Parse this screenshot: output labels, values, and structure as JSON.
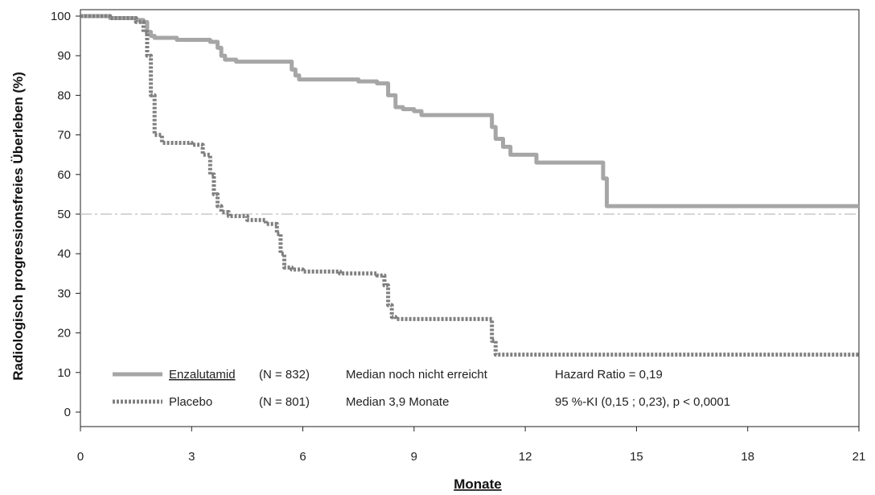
{
  "chart_data": {
    "type": "line",
    "xlabel": "Monate",
    "ylabel": "Radiologisch progressionsfreies Überleben (%)",
    "xlim": [
      0,
      21
    ],
    "ylim": [
      0,
      100
    ],
    "xticks": [
      0,
      3,
      6,
      9,
      12,
      15,
      18,
      21
    ],
    "yticks": [
      0,
      10,
      20,
      30,
      40,
      50,
      60,
      70,
      80,
      90,
      100
    ],
    "reference_line": {
      "y": 50,
      "style": "dash-dot",
      "color": "#c8c8c8"
    },
    "grid": false,
    "legend_position": "bottom-left",
    "series": [
      {
        "name": "Enzalutamid",
        "n_label": "(N = 832)",
        "median_label": "Median noch nicht erreicht",
        "stat_label": "Hazard Ratio = 0,19",
        "style": "solid",
        "color": "#a6a6a6",
        "x": [
          0,
          0.8,
          1.5,
          1.7,
          1.8,
          1.9,
          2.0,
          2.2,
          2.6,
          3.0,
          3.5,
          3.7,
          3.8,
          3.9,
          4.0,
          4.2,
          5.5,
          5.7,
          5.8,
          5.9,
          6.1,
          7.0,
          7.5,
          8.0,
          8.3,
          8.5,
          8.7,
          9.0,
          9.2,
          11.0,
          11.1,
          11.2,
          11.4,
          11.6,
          12.0,
          12.3,
          14.0,
          14.1,
          14.2,
          21.0
        ],
        "y": [
          100,
          99.5,
          99,
          98.5,
          96,
          95,
          94.5,
          94.5,
          94,
          94,
          93.5,
          92,
          90,
          89,
          89,
          88.5,
          88.5,
          86.5,
          85,
          84,
          84,
          84,
          83.5,
          83,
          80,
          77,
          76.5,
          76,
          75,
          75,
          72,
          69,
          67,
          65,
          65,
          63,
          63,
          59,
          52,
          52
        ]
      },
      {
        "name": "Placebo",
        "n_label": "(N = 801)",
        "median_label": "Median 3,9 Monate",
        "stat_label": "95 %-KI (0,15 ; 0,23), p < 0,0001",
        "style": "dotted",
        "color": "#7f7f7f",
        "x": [
          0,
          0.8,
          1.5,
          1.7,
          1.8,
          1.9,
          2.0,
          2.2,
          2.5,
          3.0,
          3.3,
          3.5,
          3.6,
          3.7,
          3.8,
          4.0,
          4.5,
          5.0,
          5.3,
          5.4,
          5.5,
          5.7,
          6.0,
          7.0,
          8.0,
          8.2,
          8.3,
          8.4,
          8.5,
          11.0,
          11.1,
          11.2,
          21.0
        ],
        "y": [
          100,
          99.5,
          98.5,
          96,
          90,
          80,
          70,
          68,
          68,
          67.5,
          65,
          60,
          55,
          52,
          50.5,
          49.5,
          48.5,
          47.5,
          45,
          40,
          36.5,
          36,
          35.5,
          35,
          34.5,
          32,
          27,
          24,
          23.5,
          23.5,
          18,
          14.5,
          14.5
        ]
      }
    ]
  }
}
